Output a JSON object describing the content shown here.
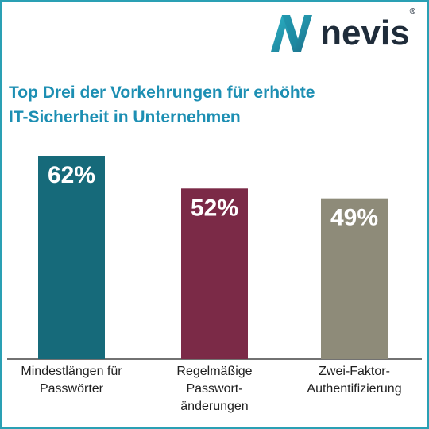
{
  "brand": {
    "name": "nevis",
    "mark": "®"
  },
  "title_lines": [
    "Top Drei der Vorkehrungen für erhöhte",
    "IT-Sicherheit in Unternehmen"
  ],
  "chart_data": {
    "type": "bar",
    "categories": [
      "Mindestlängen für Passwörter",
      "Regelmäßige Passwort- änderungen",
      "Zwei-Faktor- Authentifizierung"
    ],
    "category_lines": [
      [
        "Mindestlängen für",
        "Passwörter"
      ],
      [
        "Regelmäßige",
        "Passwort-",
        "änderungen"
      ],
      [
        "Zwei-Faktor-",
        "Authentifizierung"
      ]
    ],
    "values": [
      62,
      52,
      49
    ],
    "value_labels": [
      "62%",
      "52%",
      "49%"
    ],
    "colors": [
      "#166a7a",
      "#7b2a47",
      "#8e8b79"
    ],
    "ylim": [
      0,
      62
    ],
    "grid": false,
    "legend": "none"
  }
}
